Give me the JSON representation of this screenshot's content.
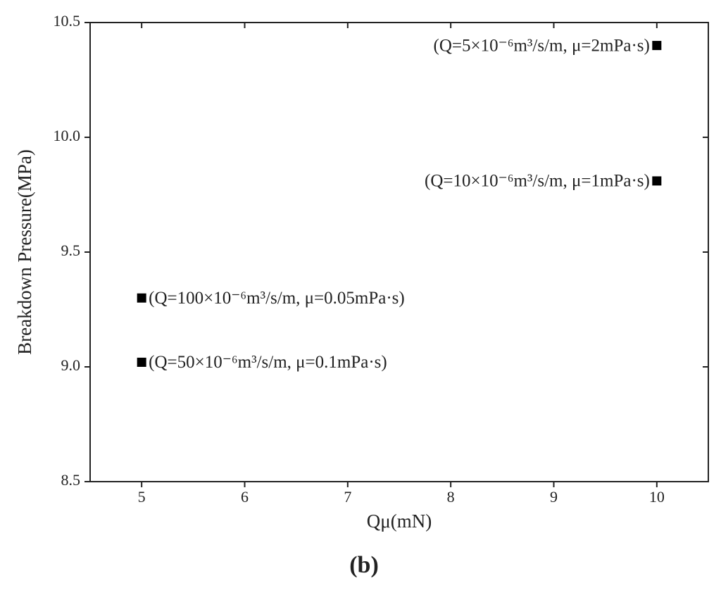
{
  "chart_data": {
    "type": "scatter",
    "title": "(b)",
    "x_label": "Qμ(mN)",
    "y_label": "Breakdown Pressure(MPa)",
    "x": [
      10,
      10,
      5,
      5
    ],
    "values": [
      10.4,
      9.81,
      9.3,
      9.02
    ],
    "annotations": [
      "(Q=5×10⁻⁶m³/s/m, μ=2mPa·s)",
      "(Q=10×10⁻⁶m³/s/m, μ=1mPa·s)",
      "(Q=100×10⁻⁶m³/s/m, μ=0.05mPa·s)",
      "(Q=50×10⁻⁶m³/s/m, μ=0.1mPa·s)"
    ],
    "color": "#000000",
    "xlim": [
      4.5,
      10.5
    ],
    "ylim": [
      8.5,
      10.5
    ],
    "xticks": [
      5,
      6,
      7,
      8,
      9,
      10
    ],
    "yticks": [
      8.5,
      {
        "value": 9,
        "label": "9.0"
      },
      9.5,
      {
        "value": 10,
        "label": "10.0"
      },
      10.5
    ]
  }
}
